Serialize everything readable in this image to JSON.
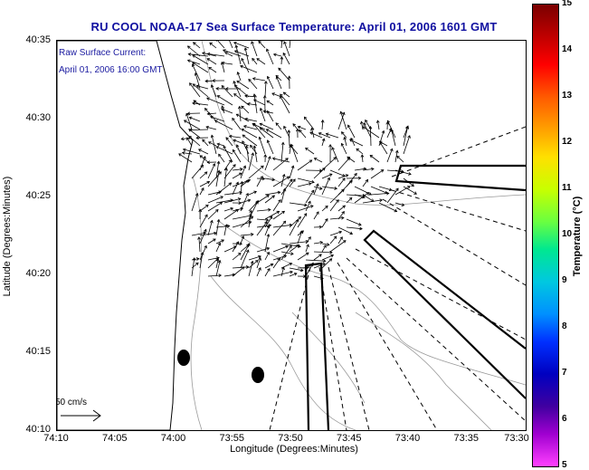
{
  "title": "RU COOL  NOAA-17  Sea Surface Temperature:  April 01, 2006 1601 GMT",
  "overlay": {
    "line1": "Raw Surface Current:",
    "line2": "April 01, 2006 16:00 GMT"
  },
  "axes": {
    "xlabel": "Longitude (Degrees:Minutes)",
    "ylabel": "Latitude (Degrees:Minutes)",
    "xticks": [
      "74:10",
      "74:05",
      "74:00",
      "73:55",
      "73:50",
      "73:45",
      "73:40",
      "73:35",
      "73:30"
    ],
    "yticks": [
      "40:35",
      "40:30",
      "40:25",
      "40:20",
      "40:15",
      "40:10"
    ]
  },
  "scale": {
    "label": "50 cm/s"
  },
  "colorbar": {
    "title": "Temperature (°C)",
    "ticks": [
      "15",
      "14",
      "13",
      "12",
      "11",
      "10",
      "9",
      "8",
      "7",
      "6",
      "5"
    ]
  }
}
